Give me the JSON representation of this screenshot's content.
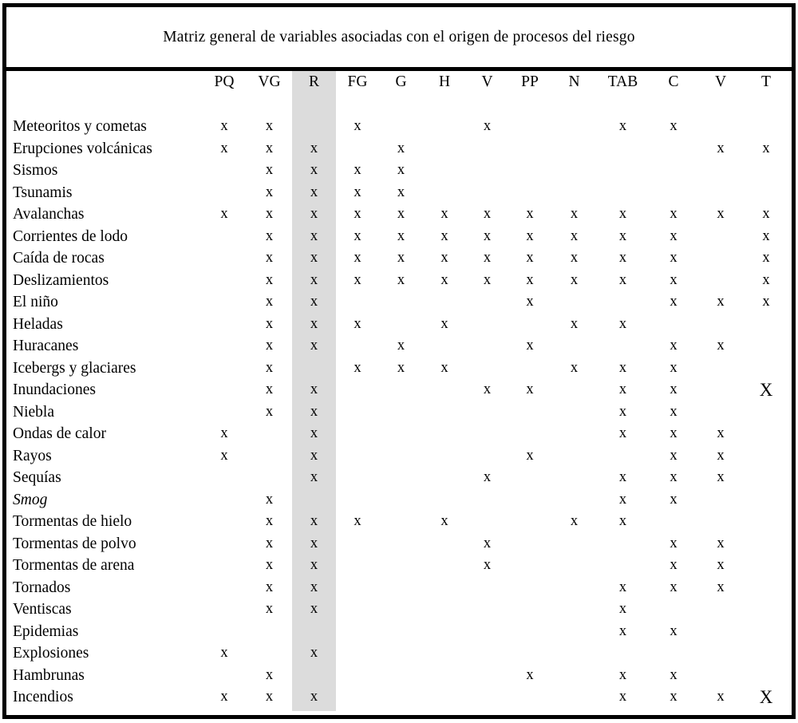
{
  "title": "Matriz general de variables asociadas con el origen de procesos del riesgo",
  "columns": [
    "PQ",
    "VG",
    "R",
    "FG",
    "G",
    "H",
    "V",
    "PP",
    "N",
    "TAB",
    "C",
    "V",
    "T"
  ],
  "highlighted_column": "R",
  "highlighted_column_index": 2,
  "highlight_color": "#dcdcdc",
  "mark_glyph": "x",
  "big_mark_glyph": "X",
  "rows": [
    {
      "label": "Meteoritos y cometas",
      "italic": false,
      "marks": [
        "x",
        "x",
        "",
        "x",
        "",
        "",
        "x",
        "",
        "",
        "x",
        "x",
        "",
        ""
      ]
    },
    {
      "label": "Erupciones volcánicas",
      "italic": false,
      "marks": [
        "x",
        "x",
        "x",
        "",
        "x",
        "",
        "",
        "",
        "",
        "",
        "",
        "x",
        "x"
      ]
    },
    {
      "label": "Sismos",
      "italic": false,
      "marks": [
        "",
        "x",
        "x",
        "x",
        "x",
        "",
        "",
        "",
        "",
        "",
        "",
        "",
        ""
      ]
    },
    {
      "label": "Tsunamis",
      "italic": false,
      "marks": [
        "",
        "x",
        "x",
        "x",
        "x",
        "",
        "",
        "",
        "",
        "",
        "",
        "",
        ""
      ]
    },
    {
      "label": "Avalanchas",
      "italic": false,
      "marks": [
        "x",
        "x",
        "x",
        "x",
        "x",
        "x",
        "x",
        "x",
        "x",
        "x",
        "x",
        "x",
        "x"
      ]
    },
    {
      "label": "Corrientes de lodo",
      "italic": false,
      "marks": [
        "",
        "x",
        "x",
        "x",
        "x",
        "x",
        "x",
        "x",
        "x",
        "x",
        "x",
        "",
        "x"
      ]
    },
    {
      "label": "Caída de rocas",
      "italic": false,
      "marks": [
        "",
        "x",
        "x",
        "x",
        "x",
        "x",
        "x",
        "x",
        "x",
        "x",
        "x",
        "",
        "x"
      ]
    },
    {
      "label": "Deslizamientos",
      "italic": false,
      "marks": [
        "",
        "x",
        "x",
        "x",
        "x",
        "x",
        "x",
        "x",
        "x",
        "x",
        "x",
        "",
        "x"
      ]
    },
    {
      "label": "El niño",
      "italic": false,
      "marks": [
        "",
        "x",
        "x",
        "",
        "",
        "",
        "",
        "x",
        "",
        "",
        "x",
        "x",
        "x"
      ]
    },
    {
      "label": "Heladas",
      "italic": false,
      "marks": [
        "",
        "x",
        "x",
        "x",
        "",
        "x",
        "",
        "",
        "x",
        "x",
        "",
        "",
        ""
      ]
    },
    {
      "label": "Huracanes",
      "italic": false,
      "marks": [
        "",
        "x",
        "x",
        "",
        "x",
        "",
        "",
        "x",
        "",
        "",
        "x",
        "x",
        ""
      ]
    },
    {
      "label": "Icebergs y glaciares",
      "italic": false,
      "marks": [
        "",
        "x",
        "",
        "x",
        "x",
        "x",
        "",
        "",
        "x",
        "x",
        "x",
        "",
        ""
      ]
    },
    {
      "label": "Inundaciones",
      "italic": false,
      "marks": [
        "",
        "x",
        "x",
        "",
        "",
        "",
        "x",
        "x",
        "",
        "x",
        "x",
        "",
        "X"
      ]
    },
    {
      "label": "Niebla",
      "italic": false,
      "marks": [
        "",
        "x",
        "x",
        "",
        "",
        "",
        "",
        "",
        "",
        "x",
        "x",
        "",
        ""
      ]
    },
    {
      "label": "Ondas de calor",
      "italic": false,
      "marks": [
        "x",
        "",
        "x",
        "",
        "",
        "",
        "",
        "",
        "",
        "x",
        "x",
        "x",
        ""
      ]
    },
    {
      "label": "Rayos",
      "italic": false,
      "marks": [
        "x",
        "",
        "x",
        "",
        "",
        "",
        "",
        "x",
        "",
        "",
        "x",
        "x",
        ""
      ]
    },
    {
      "label": "Sequías",
      "italic": false,
      "marks": [
        "",
        "",
        "x",
        "",
        "",
        "",
        "x",
        "",
        "",
        "x",
        "x",
        "x",
        ""
      ]
    },
    {
      "label": "Smog",
      "italic": true,
      "marks": [
        "",
        "x",
        "",
        "",
        "",
        "",
        "",
        "",
        "",
        "x",
        "x",
        "",
        ""
      ]
    },
    {
      "label": "Tormentas de hielo",
      "italic": false,
      "marks": [
        "",
        "x",
        "x",
        "x",
        "",
        "x",
        "",
        "",
        "x",
        "x",
        "",
        "",
        ""
      ]
    },
    {
      "label": "Tormentas de polvo",
      "italic": false,
      "marks": [
        "",
        "x",
        "x",
        "",
        "",
        "",
        "x",
        "",
        "",
        "",
        "x",
        "x",
        ""
      ]
    },
    {
      "label": "Tormentas de arena",
      "italic": false,
      "marks": [
        "",
        "x",
        "x",
        "",
        "",
        "",
        "x",
        "",
        "",
        "",
        "x",
        "x",
        ""
      ]
    },
    {
      "label": "Tornados",
      "italic": false,
      "marks": [
        "",
        "x",
        "x",
        "",
        "",
        "",
        "",
        "",
        "",
        "x",
        "x",
        "x",
        ""
      ]
    },
    {
      "label": "Ventiscas",
      "italic": false,
      "marks": [
        "",
        "x",
        "x",
        "",
        "",
        "",
        "",
        "",
        "",
        "x",
        "",
        "",
        ""
      ]
    },
    {
      "label": "Epidemias",
      "italic": false,
      "marks": [
        "",
        "",
        "",
        "",
        "",
        "",
        "",
        "",
        "",
        "x",
        "x",
        "",
        ""
      ]
    },
    {
      "label": "Explosiones",
      "italic": false,
      "marks": [
        "x",
        "",
        "x",
        "",
        "",
        "",
        "",
        "",
        "",
        "",
        "",
        "",
        ""
      ]
    },
    {
      "label": "Hambrunas",
      "italic": false,
      "marks": [
        "",
        "x",
        "",
        "",
        "",
        "",
        "",
        "x",
        "",
        "x",
        "x",
        "",
        ""
      ]
    },
    {
      "label": "Incendios",
      "italic": false,
      "marks": [
        "x",
        "x",
        "x",
        "",
        "",
        "",
        "",
        "",
        "",
        "x",
        "x",
        "x",
        "X"
      ]
    }
  ]
}
